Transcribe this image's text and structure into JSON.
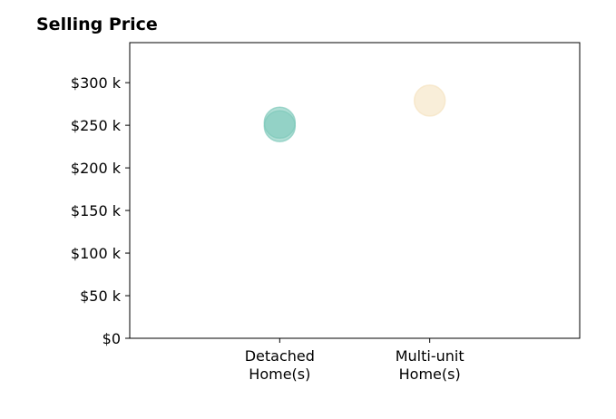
{
  "chart_data": {
    "type": "scatter",
    "title": "Selling Price",
    "xlabel": "",
    "ylabel": "",
    "categories": [
      [
        "Detached",
        "Home(s)"
      ],
      [
        "Multi-unit",
        "Home(s)"
      ]
    ],
    "xlim": [
      -1,
      2
    ],
    "ylim": [
      0,
      347000
    ],
    "yticks": [
      0,
      50000,
      100000,
      150000,
      200000,
      250000,
      300000
    ],
    "ytick_labels": [
      "$0",
      "$50 k",
      "$100 k",
      "$150 k",
      "$200 k",
      "$250 k",
      "$300 k"
    ],
    "grid": false,
    "series": [
      {
        "color": "#7fc9bb",
        "points": [
          {
            "category": 0,
            "value": 253000
          },
          {
            "category": 0,
            "value": 249000
          }
        ]
      },
      {
        "color": "#f5e3c0",
        "points": [
          {
            "category": 1,
            "value": 279000
          }
        ]
      }
    ]
  }
}
